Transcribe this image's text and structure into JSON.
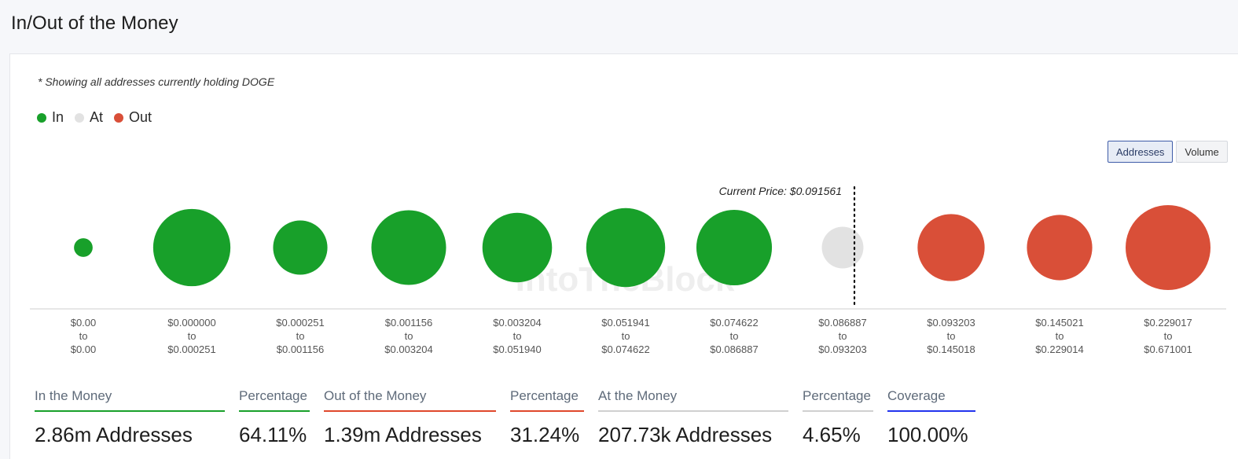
{
  "page": {
    "title": "In/Out of the Money",
    "note": "* Showing all addresses currently holding DOGE"
  },
  "legend": [
    {
      "label": "In",
      "color": "#18a02a"
    },
    {
      "label": "At",
      "color": "#e2e2e2"
    },
    {
      "label": "Out",
      "color": "#d94f38"
    }
  ],
  "toggle": {
    "addresses_label": "Addresses",
    "volume_label": "Volume",
    "active": "Addresses"
  },
  "chart_data": {
    "type": "bubble",
    "measure": "addresses (relative bubble size)",
    "current_price_label": "Current Price: $0.091561",
    "current_price": 0.091561,
    "watermark": "IntoTheBlock",
    "buckets": [
      {
        "from": "$0.00",
        "to": "$0.00",
        "status": "in",
        "size": 0.22
      },
      {
        "from": "$0.000000",
        "to": "$0.000251",
        "status": "in",
        "size": 0.91
      },
      {
        "from": "$0.000251",
        "to": "$0.001156",
        "status": "in",
        "size": 0.64
      },
      {
        "from": "$0.001156",
        "to": "$0.003204",
        "status": "in",
        "size": 0.88
      },
      {
        "from": "$0.003204",
        "to": "$0.051940",
        "status": "in",
        "size": 0.82
      },
      {
        "from": "$0.051941",
        "to": "$0.074622",
        "status": "in",
        "size": 0.93
      },
      {
        "from": "$0.074622",
        "to": "$0.086887",
        "status": "in",
        "size": 0.89
      },
      {
        "from": "$0.086887",
        "to": "$0.093203",
        "status": "at",
        "size": 0.49
      },
      {
        "from": "$0.093203",
        "to": "$0.145018",
        "status": "out",
        "size": 0.79
      },
      {
        "from": "$0.145021",
        "to": "$0.229014",
        "status": "out",
        "size": 0.77
      },
      {
        "from": "$0.229017",
        "to": "$0.671001",
        "status": "out",
        "size": 1.0
      }
    ],
    "colors": {
      "in": "#18a02a",
      "at": "#e2e2e2",
      "out": "#d94f38"
    }
  },
  "stats": [
    {
      "label": "In the Money",
      "value": "2.86m Addresses",
      "color": "#18a02a"
    },
    {
      "label": "Percentage",
      "value": "64.11%",
      "color": "#18a02a"
    },
    {
      "label": "Out of the Money",
      "value": "1.39m Addresses",
      "color": "#e0482c"
    },
    {
      "label": "Percentage",
      "value": "31.24%",
      "color": "#e0482c"
    },
    {
      "label": "At the Money",
      "value": "207.73k Addresses",
      "color": "#d0d0d0"
    },
    {
      "label": "Percentage",
      "value": "4.65%",
      "color": "#d0d0d0"
    },
    {
      "label": "Coverage",
      "value": "100.00%",
      "color": "#2233ee"
    }
  ]
}
